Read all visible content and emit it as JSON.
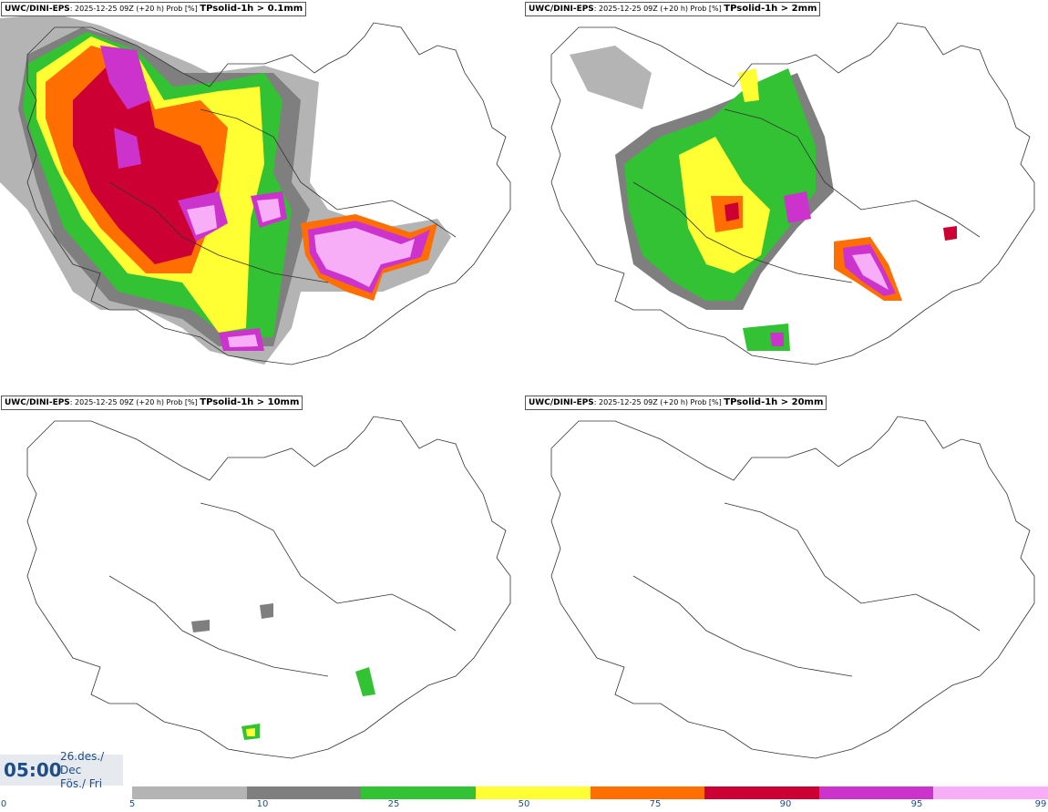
{
  "panels": [
    {
      "source": "UWC/DINI-EPS",
      "meta": ": 2025-12-25 09Z (+20 h) Prob [%] ",
      "variable": "TPsolid-1h > 0.1mm"
    },
    {
      "source": "UWC/DINI-EPS",
      "meta": ": 2025-12-25 09Z (+20 h) Prob [%] ",
      "variable": "TPsolid-1h > 2mm"
    },
    {
      "source": "UWC/DINI-EPS",
      "meta": ": 2025-12-25 09Z (+20 h) Prob [%] ",
      "variable": "TPsolid-1h > 10mm"
    },
    {
      "source": "UWC/DINI-EPS",
      "meta": ": 2025-12-25 09Z (+20 h) Prob [%] ",
      "variable": "TPsolid-1h > 20mm"
    }
  ],
  "time": {
    "clock": "05:00",
    "date_line": "26.des./ Dec",
    "day_line": "Fös./ Fri"
  },
  "legend": {
    "ticks": [
      "0",
      "5",
      "10",
      "25",
      "50",
      "75",
      "90",
      "95",
      "99"
    ],
    "colors": [
      "#b4b4b4",
      "#7f7f7f",
      "#33c233",
      "#ffff33",
      "#ff6e00",
      "#cc0033",
      "#cc33cc",
      "#f7aef7"
    ]
  }
}
